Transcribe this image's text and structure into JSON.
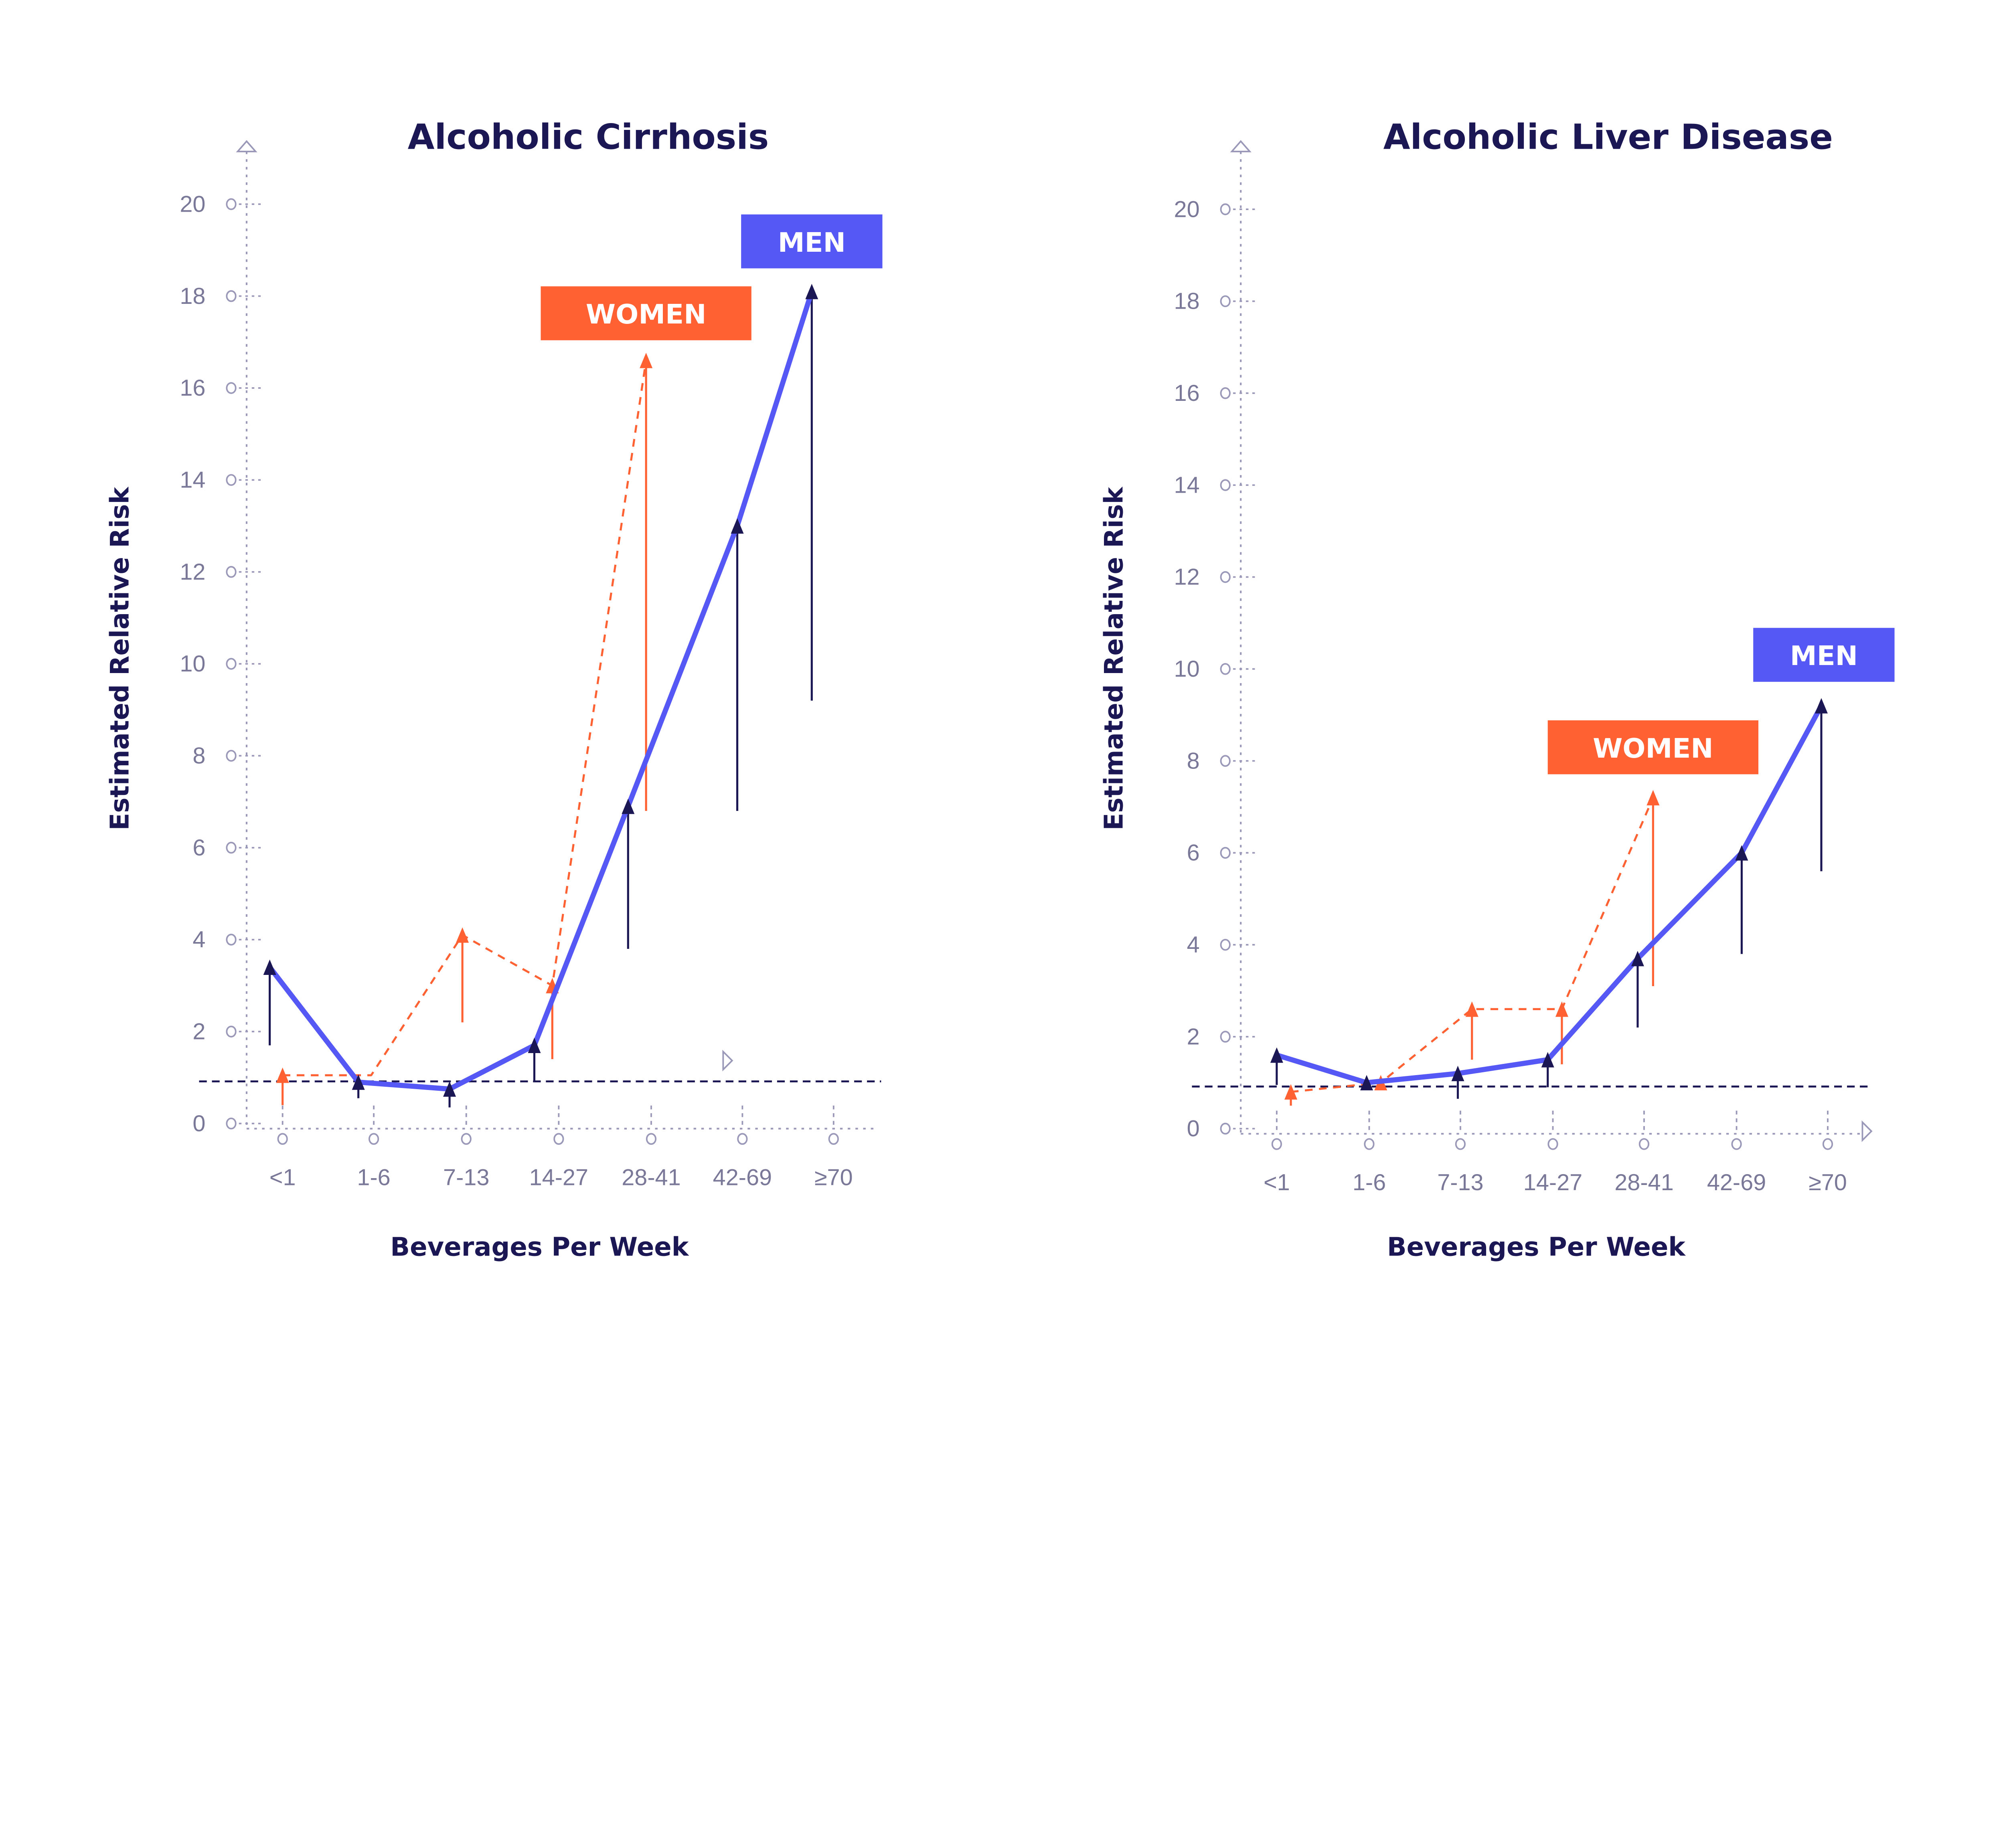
{
  "colors": {
    "men": "#5558f5",
    "women": "#ff6133",
    "ink": "#1b1654",
    "axis": "#9a98b8"
  },
  "chart_data": [
    {
      "type": "line",
      "title": "Alcoholic Cirrhosis",
      "xlabel": "Beverages Per Week",
      "ylabel": "Estimated Relative Risk",
      "categories": [
        "<1",
        "1-6",
        "7-13",
        "14-27",
        "28-41",
        "42-69",
        "≥70"
      ],
      "yticks": [
        0,
        2,
        4,
        6,
        8,
        10,
        12,
        14,
        16,
        18,
        20
      ],
      "ylim": [
        0,
        20
      ],
      "reference_line": 1,
      "series": [
        {
          "name": "MEN",
          "values": [
            3.4,
            0.9,
            0.75,
            1.7,
            6.9,
            13.0,
            18.1
          ],
          "lower": [
            1.7,
            0.55,
            0.35,
            0.9,
            3.8,
            6.8,
            9.2
          ]
        },
        {
          "name": "WOMEN",
          "values": [
            1.05,
            1.05,
            4.1,
            3.0,
            16.6,
            null,
            null
          ],
          "lower": [
            0.4,
            null,
            2.2,
            1.4,
            6.8,
            null,
            null
          ]
        }
      ]
    },
    {
      "type": "line",
      "title": "Alcoholic Liver Disease",
      "xlabel": "Beverages Per Week",
      "ylabel": "Estimated Relative Risk",
      "categories": [
        "<1",
        "1-6",
        "7-13",
        "14-27",
        "28-41",
        "42-69",
        "≥70"
      ],
      "yticks": [
        0,
        2,
        4,
        6,
        8,
        10,
        12,
        14,
        16,
        18,
        20
      ],
      "ylim": [
        0,
        20
      ],
      "reference_line": 1,
      "series": [
        {
          "name": "MEN",
          "values": [
            1.6,
            1.0,
            1.2,
            1.5,
            3.7,
            6.0,
            9.2
          ],
          "lower": [
            0.95,
            1.0,
            0.65,
            0.9,
            2.2,
            3.8,
            5.6
          ]
        },
        {
          "name": "WOMEN",
          "values": [
            0.8,
            1.0,
            2.6,
            2.6,
            7.2,
            null,
            null
          ],
          "lower": [
            0.5,
            1.0,
            1.5,
            1.4,
            3.1,
            null,
            null
          ]
        }
      ]
    }
  ]
}
